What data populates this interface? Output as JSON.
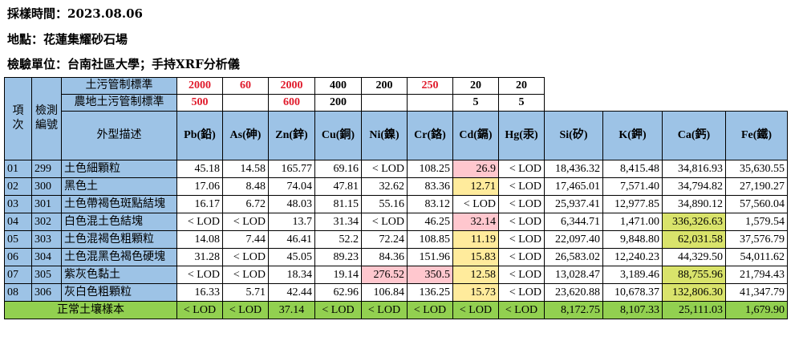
{
  "header": {
    "line1": "採樣時間：2023.08.06",
    "line2": "地點：花蓮集耀砂石場",
    "line3": "檢驗單位：台南社區大學；手持XRF分析儀"
  },
  "table": {
    "col_item": "項次",
    "col_code": "檢測編號",
    "col_desc": "外型描述",
    "std1_label": "土污管制標準",
    "std2_label": "農地土污管制標準",
    "std1": [
      "2000",
      "60",
      "2000",
      "400",
      "200",
      "250",
      "20",
      "20"
    ],
    "std2": [
      "500",
      "",
      "600",
      "200",
      "",
      "",
      "5",
      "5"
    ],
    "elements": [
      "Pb(鉛)",
      "As(砷)",
      "Zn(鋅)",
      "Cu(銅)",
      "Ni(鎳)",
      "Cr(鉻)",
      "Cd(鎘)",
      "Hg(汞)",
      "Si(矽)",
      "K(鉀)",
      "Ca(鈣)",
      "Fe(鐵)"
    ],
    "rows": [
      {
        "no": "01",
        "code": "299",
        "desc": "土色細顆粒",
        "vals": [
          "45.18",
          "14.58",
          "165.77",
          "69.16",
          "< LOD",
          "108.25",
          "26.9",
          "< LOD",
          "18,436.32",
          "8,415.48",
          "34,816.93",
          "35,630.55"
        ]
      },
      {
        "no": "02",
        "code": "300",
        "desc": "黑色土",
        "vals": [
          "17.06",
          "8.48",
          "74.04",
          "47.81",
          "32.62",
          "83.36",
          "12.71",
          "< LOD",
          "17,465.01",
          "7,571.40",
          "34,794.82",
          "27,190.27"
        ]
      },
      {
        "no": "03",
        "code": "301",
        "desc": "土色帶褐色斑點結塊",
        "vals": [
          "16.17",
          "6.72",
          "48.03",
          "81.15",
          "55.16",
          "83.12",
          "< LOD",
          "< LOD",
          "25,937.41",
          "12,977.85",
          "34,890.12",
          "57,560.04"
        ]
      },
      {
        "no": "04",
        "code": "302",
        "desc": "白色混土色結塊",
        "vals": [
          "< LOD",
          "< LOD",
          "13.7",
          "31.34",
          "< LOD",
          "46.25",
          "32.14",
          "< LOD",
          "6,344.71",
          "1,471.00",
          "336,326.63",
          "1,579.54"
        ]
      },
      {
        "no": "05",
        "code": "303",
        "desc": "土色混褐色粗顆粒",
        "vals": [
          "14.08",
          "7.44",
          "46.41",
          "52.2",
          "72.24",
          "108.85",
          "11.19",
          "< LOD",
          "22,097.40",
          "9,848.80",
          "62,031.58",
          "37,576.79"
        ]
      },
      {
        "no": "06",
        "code": "304",
        "desc": "土色混黑色褐色硬塊",
        "vals": [
          "31.28",
          "< LOD",
          "45.05",
          "89.23",
          "84.36",
          "151.96",
          "15.83",
          "< LOD",
          "26,583.02",
          "12,240.23",
          "44,329.50",
          "54,011.62"
        ]
      },
      {
        "no": "07",
        "code": "305",
        "desc": "紫灰色黏土",
        "vals": [
          "< LOD",
          "< LOD",
          "18.34",
          "19.14",
          "276.52",
          "350.5",
          "12.58",
          "< LOD",
          "13,028.47",
          "3,189.46",
          "88,755.96",
          "21,794.43"
        ]
      },
      {
        "no": "08",
        "code": "306",
        "desc": "灰白色粗顆粒",
        "vals": [
          "16.33",
          "5.71",
          "42.44",
          "62.96",
          "106.84",
          "136.25",
          "15.73",
          "< LOD",
          "23,620.88",
          "10,678.37",
          "132,806.30",
          "41,347.79"
        ]
      }
    ],
    "normal_label": "正常土壤樣本",
    "normal_vals": [
      "< LOD",
      "< LOD",
      "37.14",
      "< LOD",
      "< LOD",
      "< LOD",
      "< LOD",
      "< LOD",
      "8,172.75",
      "8,107.33",
      "25,111.03",
      "1,679.90"
    ],
    "highlights": {
      "pink": "#ffc7ce",
      "yellow": "#ffeb9c",
      "olive": "#d9e36b",
      "green": "#92d050",
      "header_blue": "#9dc3e6",
      "standard_red": "#e01b2c"
    }
  }
}
